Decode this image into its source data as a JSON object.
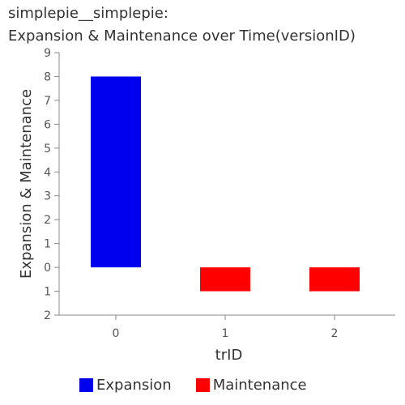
{
  "title_line1": "simplepie__simplepie:",
  "title_line2": "Expansion & Maintenance over Time(versionID)",
  "colors": {
    "expansion": "#0000ee",
    "maintenance": "#ff0000",
    "axis": "#888888",
    "text": "#555555"
  },
  "chart_data": {
    "type": "bar",
    "xlabel": "trID",
    "ylabel": "Expansion & Maintenance",
    "categories": [
      "0",
      "1",
      "2"
    ],
    "series": [
      {
        "name": "Expansion",
        "values": [
          8,
          0,
          0
        ]
      },
      {
        "name": "Maintenance",
        "values": [
          0,
          -1,
          -1
        ]
      }
    ],
    "ylim": [
      -2,
      9
    ],
    "ytick_values": [
      9,
      8,
      7,
      6,
      5,
      4,
      3,
      2,
      1,
      0,
      -1,
      -2
    ],
    "ytick_labels": [
      "9",
      "8",
      "7",
      "6",
      "5",
      "4",
      "3",
      "2",
      "1",
      "0",
      "1",
      "2"
    ],
    "legend": "bottom",
    "grid": false
  }
}
